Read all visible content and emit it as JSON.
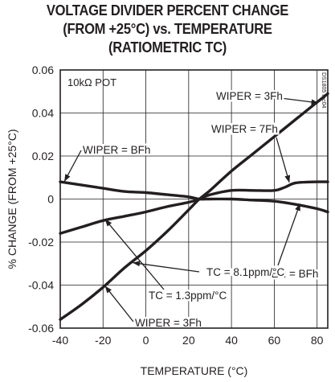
{
  "chart_data": {
    "type": "line",
    "title_lines": [
      "VOLTAGE DIVIDER PERCENT CHANGE",
      "(FROM +25°C) vs. TEMPERATURE",
      "(RATIOMETRIC TC)"
    ],
    "xlabel": "TEMPERATURE (°C)",
    "ylabel": "% CHANGE (FROM +25°C)",
    "xlim": [
      -40,
      85
    ],
    "ylim": [
      -0.06,
      0.06
    ],
    "xticks": [
      -40,
      -20,
      0,
      20,
      40,
      60,
      80
    ],
    "xtick_labels": [
      "-40",
      "-20",
      "0",
      "20",
      "40",
      "60",
      "80"
    ],
    "yticks": [
      0.06,
      0.04,
      0.02,
      0,
      -0.02,
      -0.04,
      -0.06
    ],
    "ytick_labels": [
      "0.06",
      "0.04",
      "0.02",
      "0",
      "-0.02",
      "-0.04",
      "-0.06"
    ],
    "grid": true,
    "inner_label": "10kΩ POT",
    "side_code": "DS1805 toc04",
    "series": [
      {
        "name": "WIPER = 3Fh",
        "x": [
          -40,
          -30,
          -20,
          -10,
          0,
          10,
          20,
          25,
          30,
          40,
          50,
          60,
          70,
          80,
          85
        ],
        "values": [
          -0.056,
          -0.049,
          -0.041,
          -0.032,
          -0.024,
          -0.015,
          -0.005,
          0.0,
          0.004,
          0.013,
          0.021,
          0.029,
          0.037,
          0.045,
          0.049
        ]
      },
      {
        "name": "WIPER = 7Fh",
        "x": [
          -40,
          -30,
          -20,
          -10,
          0,
          10,
          20,
          25,
          30,
          40,
          50,
          60,
          65,
          70,
          80,
          85
        ],
        "values": [
          -0.016,
          -0.013,
          -0.01,
          -0.008,
          -0.006,
          -0.0035,
          -0.0015,
          0.0,
          0.002,
          0.004,
          0.004,
          0.004,
          0.0055,
          0.0075,
          0.008,
          0.008
        ]
      },
      {
        "name": "WIPER = BFh",
        "x": [
          -40,
          -30,
          -20,
          -10,
          0,
          10,
          20,
          25,
          30,
          40,
          50,
          60,
          70,
          80,
          85
        ],
        "values": [
          0.008,
          0.0065,
          0.005,
          0.0035,
          0.003,
          0.002,
          0.001,
          0.0,
          0.0,
          0.0,
          -0.0005,
          -0.001,
          -0.0025,
          -0.0045,
          -0.006
        ]
      }
    ],
    "annotations": [
      {
        "text": "WIPER = 3Fh",
        "position": "upper-right",
        "points_to": "WIPER = 3Fh"
      },
      {
        "text": "WIPER = 7Fh",
        "position": "upper-right",
        "points_to": "WIPER = 7Fh"
      },
      {
        "text": "WIPER = BFh",
        "position": "upper-left",
        "points_to": "WIPER = BFh"
      },
      {
        "text": "WIPER = BFh",
        "position": "lower-right",
        "points_to": "WIPER = BFh"
      },
      {
        "text": "TC = 8.1ppm/°C",
        "position": "lower-center",
        "points_to": "WIPER = 3Fh"
      },
      {
        "text": "TC = 1.3ppm/°C",
        "position": "lower-center",
        "points_to": "WIPER = 7Fh"
      },
      {
        "text": "WIPER = 3Fh",
        "position": "bottom-center",
        "points_to": "WIPER = 3Fh"
      }
    ]
  }
}
